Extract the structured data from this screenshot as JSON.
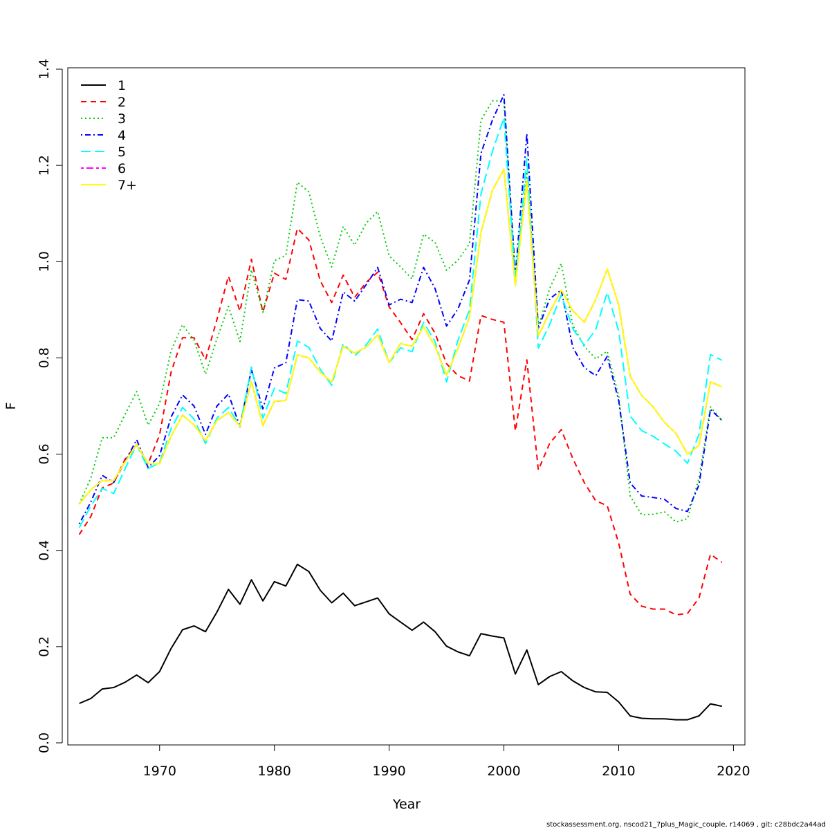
{
  "chart_data": {
    "type": "line",
    "xlabel": "Year",
    "ylabel": "F",
    "xlim": [
      1962,
      2021
    ],
    "ylim": [
      0,
      1.4
    ],
    "xticks": [
      1970,
      1980,
      1990,
      2000,
      2010,
      2020
    ],
    "yticks": [
      0.0,
      0.2,
      0.4,
      0.6,
      0.8,
      1.0,
      1.2,
      1.4
    ],
    "ytick_labels": [
      "0.0",
      "0.2",
      "0.4",
      "0.6",
      "0.8",
      "1.0",
      "1.2",
      "1.4"
    ],
    "grid": false,
    "legend_position": "top-left",
    "x": [
      1963,
      1964,
      1965,
      1966,
      1967,
      1968,
      1969,
      1970,
      1971,
      1972,
      1973,
      1974,
      1975,
      1976,
      1977,
      1978,
      1979,
      1980,
      1981,
      1982,
      1983,
      1984,
      1985,
      1986,
      1987,
      1988,
      1989,
      1990,
      1991,
      1992,
      1993,
      1994,
      1995,
      1996,
      1997,
      1998,
      1999,
      2000,
      2001,
      2002,
      2003,
      2004,
      2005,
      2006,
      2007,
      2008,
      2009,
      2010,
      2011,
      2012,
      2013,
      2014,
      2015,
      2016,
      2017,
      2018,
      2019
    ],
    "series": [
      {
        "name": "1",
        "color": "#000000",
        "dash": "solid",
        "values": [
          0.082,
          0.092,
          0.112,
          0.115,
          0.126,
          0.141,
          0.125,
          0.148,
          0.196,
          0.235,
          0.243,
          0.231,
          0.272,
          0.319,
          0.288,
          0.339,
          0.295,
          0.335,
          0.326,
          0.371,
          0.356,
          0.317,
          0.291,
          0.311,
          0.285,
          0.293,
          0.301,
          0.268,
          0.251,
          0.234,
          0.251,
          0.231,
          0.201,
          0.189,
          0.181,
          0.227,
          0.222,
          0.218,
          0.143,
          0.193,
          0.121,
          0.138,
          0.148,
          0.129,
          0.115,
          0.106,
          0.105,
          0.085,
          0.056,
          0.051,
          0.05,
          0.05,
          0.048,
          0.048,
          0.056,
          0.081,
          0.076
        ]
      },
      {
        "name": "2",
        "color": "#ff0000",
        "dash": "dashed",
        "values": [
          0.433,
          0.47,
          0.53,
          0.54,
          0.59,
          0.62,
          0.58,
          0.64,
          0.77,
          0.842,
          0.842,
          0.796,
          0.88,
          0.97,
          0.897,
          1.005,
          0.895,
          0.976,
          0.963,
          1.069,
          1.045,
          0.96,
          0.915,
          0.972,
          0.926,
          0.957,
          0.978,
          0.906,
          0.873,
          0.838,
          0.892,
          0.851,
          0.788,
          0.763,
          0.752,
          0.888,
          0.88,
          0.874,
          0.648,
          0.796,
          0.567,
          0.623,
          0.651,
          0.591,
          0.541,
          0.503,
          0.493,
          0.415,
          0.309,
          0.284,
          0.278,
          0.278,
          0.266,
          0.269,
          0.301,
          0.392,
          0.375
        ]
      },
      {
        "name": "3",
        "color": "#00cd00",
        "dash": "dotted",
        "values": [
          0.496,
          0.55,
          0.634,
          0.634,
          0.683,
          0.73,
          0.66,
          0.705,
          0.815,
          0.869,
          0.837,
          0.766,
          0.84,
          0.907,
          0.834,
          0.983,
          0.895,
          1.002,
          1.013,
          1.165,
          1.145,
          1.052,
          0.989,
          1.073,
          1.034,
          1.08,
          1.104,
          1.012,
          0.989,
          0.964,
          1.057,
          1.04,
          0.982,
          1.003,
          1.037,
          1.294,
          1.334,
          1.334,
          0.965,
          1.187,
          0.864,
          0.945,
          0.996,
          0.868,
          0.824,
          0.798,
          0.814,
          0.721,
          0.513,
          0.474,
          0.475,
          0.48,
          0.459,
          0.466,
          0.55,
          0.698,
          0.67
        ]
      },
      {
        "name": "4",
        "color": "#0000ff",
        "dash": "dotdash",
        "values": [
          0.455,
          0.5,
          0.556,
          0.541,
          0.585,
          0.63,
          0.572,
          0.597,
          0.677,
          0.723,
          0.7,
          0.641,
          0.7,
          0.725,
          0.657,
          0.776,
          0.694,
          0.779,
          0.79,
          0.921,
          0.918,
          0.861,
          0.835,
          0.937,
          0.918,
          0.952,
          0.988,
          0.91,
          0.922,
          0.915,
          0.988,
          0.944,
          0.866,
          0.902,
          0.962,
          1.225,
          1.294,
          1.347,
          0.972,
          1.266,
          0.862,
          0.923,
          0.941,
          0.822,
          0.78,
          0.763,
          0.803,
          0.711,
          0.54,
          0.513,
          0.51,
          0.506,
          0.487,
          0.481,
          0.536,
          0.693,
          0.67
        ]
      },
      {
        "name": "5",
        "color": "#00ffff",
        "dash": "longdash",
        "values": [
          0.447,
          0.492,
          0.529,
          0.518,
          0.57,
          0.62,
          0.57,
          0.582,
          0.653,
          0.697,
          0.673,
          0.622,
          0.675,
          0.697,
          0.658,
          0.781,
          0.675,
          0.737,
          0.726,
          0.835,
          0.822,
          0.776,
          0.743,
          0.83,
          0.804,
          0.827,
          0.86,
          0.79,
          0.821,
          0.813,
          0.874,
          0.834,
          0.75,
          0.837,
          0.9,
          1.141,
          1.229,
          1.299,
          0.961,
          1.215,
          0.82,
          0.87,
          0.931,
          0.861,
          0.826,
          0.859,
          0.936,
          0.856,
          0.679,
          0.649,
          0.637,
          0.621,
          0.606,
          0.581,
          0.641,
          0.807,
          0.795
        ]
      },
      {
        "name": "6",
        "color": "#ff00ff",
        "dash": "twodash",
        "values": [
          0.496,
          0.526,
          0.545,
          0.545,
          0.584,
          0.62,
          0.58,
          0.58,
          0.637,
          0.681,
          0.661,
          0.628,
          0.67,
          0.686,
          0.658,
          0.751,
          0.659,
          0.71,
          0.711,
          0.806,
          0.8,
          0.77,
          0.75,
          0.824,
          0.81,
          0.822,
          0.848,
          0.79,
          0.83,
          0.824,
          0.865,
          0.824,
          0.764,
          0.82,
          0.885,
          1.061,
          1.148,
          1.192,
          0.951,
          1.168,
          0.846,
          0.895,
          0.941,
          0.898,
          0.874,
          0.921,
          0.985,
          0.91,
          0.762,
          0.722,
          0.698,
          0.666,
          0.643,
          0.6,
          0.618,
          0.75,
          0.74
        ]
      },
      {
        "name": "7+",
        "color": "#ffff00",
        "dash": "solid",
        "values": [
          0.496,
          0.526,
          0.545,
          0.545,
          0.584,
          0.62,
          0.58,
          0.58,
          0.637,
          0.681,
          0.661,
          0.628,
          0.67,
          0.686,
          0.658,
          0.751,
          0.659,
          0.71,
          0.711,
          0.806,
          0.8,
          0.77,
          0.75,
          0.824,
          0.81,
          0.822,
          0.848,
          0.79,
          0.83,
          0.824,
          0.865,
          0.824,
          0.764,
          0.82,
          0.885,
          1.061,
          1.148,
          1.192,
          0.951,
          1.168,
          0.846,
          0.895,
          0.941,
          0.898,
          0.874,
          0.921,
          0.985,
          0.91,
          0.762,
          0.722,
          0.698,
          0.666,
          0.643,
          0.6,
          0.618,
          0.75,
          0.74
        ]
      }
    ]
  },
  "footer": {
    "text": "stockassessment.org, nscod21_7plus_Magic_couple, r14069 , git: c28bdc2a44ad"
  }
}
